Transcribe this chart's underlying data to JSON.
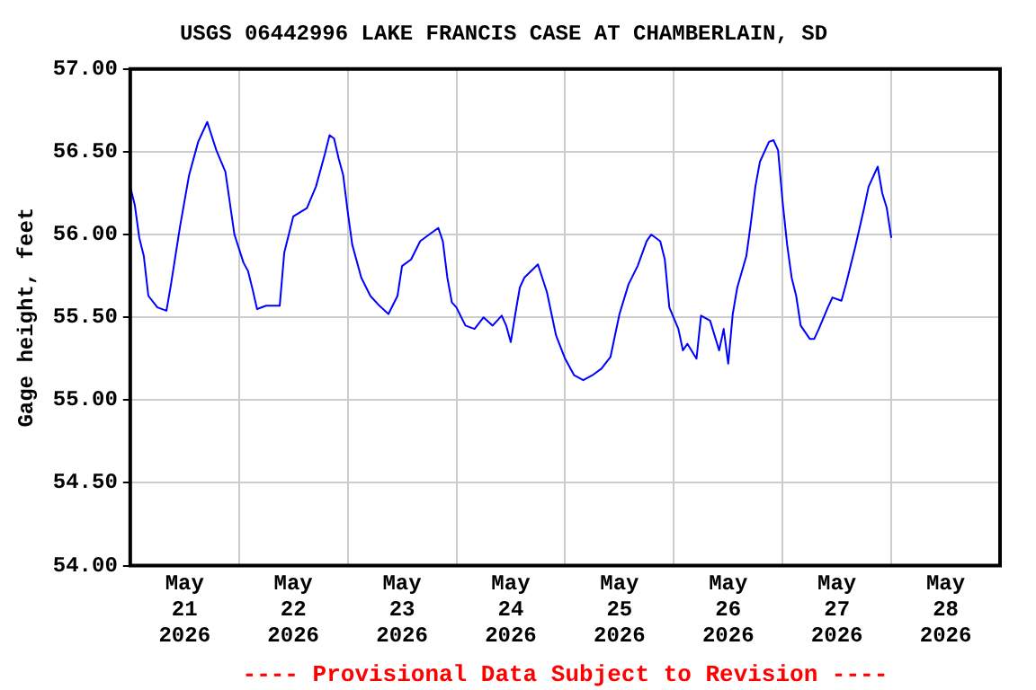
{
  "chart_data": {
    "type": "line",
    "title": "USGS 06442996 LAKE FRANCIS CASE AT CHAMBERLAIN, SD",
    "ylabel": "Gage height, feet",
    "annotations": [
      "---- Provisional Data Subject to Revision ----"
    ],
    "x": [
      "2026-05-21T00:00",
      "2026-05-21T01:00",
      "2026-05-21T02:00",
      "2026-05-21T03:00",
      "2026-05-21T04:00",
      "2026-05-21T06:00",
      "2026-05-21T08:00",
      "2026-05-21T09:00",
      "2026-05-21T11:00",
      "2026-05-21T13:00",
      "2026-05-21T15:00",
      "2026-05-21T17:00",
      "2026-05-21T19:00",
      "2026-05-21T21:00",
      "2026-05-21T23:00",
      "2026-05-22T01:00",
      "2026-05-22T02:00",
      "2026-05-22T03:00",
      "2026-05-22T04:00",
      "2026-05-22T06:00",
      "2026-05-22T09:00",
      "2026-05-22T10:00",
      "2026-05-22T12:00",
      "2026-05-22T15:00",
      "2026-05-22T17:00",
      "2026-05-22T19:00",
      "2026-05-22T20:00",
      "2026-05-22T21:00",
      "2026-05-22T22:00",
      "2026-05-22T23:00",
      "2026-05-23T00:00",
      "2026-05-23T01:00",
      "2026-05-23T03:00",
      "2026-05-23T05:00",
      "2026-05-23T07:00",
      "2026-05-23T09:00",
      "2026-05-23T11:00",
      "2026-05-23T12:00",
      "2026-05-23T14:00",
      "2026-05-23T16:00",
      "2026-05-23T18:00",
      "2026-05-23T20:00",
      "2026-05-23T21:00",
      "2026-05-23T22:00",
      "2026-05-23T23:00",
      "2026-05-24T00:00",
      "2026-05-24T02:00",
      "2026-05-24T04:00",
      "2026-05-24T06:00",
      "2026-05-24T08:00",
      "2026-05-24T10:00",
      "2026-05-24T11:00",
      "2026-05-24T12:00",
      "2026-05-24T13:00",
      "2026-05-24T14:00",
      "2026-05-24T15:00",
      "2026-05-24T18:00",
      "2026-05-24T20:00",
      "2026-05-24T22:00",
      "2026-05-25T00:00",
      "2026-05-25T02:00",
      "2026-05-25T04:00",
      "2026-05-25T06:00",
      "2026-05-25T08:00",
      "2026-05-25T10:00",
      "2026-05-25T12:00",
      "2026-05-25T14:00",
      "2026-05-25T16:00",
      "2026-05-25T18:00",
      "2026-05-25T19:00",
      "2026-05-25T21:00",
      "2026-05-25T22:00",
      "2026-05-25T23:00",
      "2026-05-26T01:00",
      "2026-05-26T02:00",
      "2026-05-26T03:00",
      "2026-05-26T05:00",
      "2026-05-26T06:00",
      "2026-05-26T08:00",
      "2026-05-26T10:00",
      "2026-05-26T11:00",
      "2026-05-26T12:00",
      "2026-05-26T13:00",
      "2026-05-26T14:00",
      "2026-05-26T16:00",
      "2026-05-26T17:00",
      "2026-05-26T18:00",
      "2026-05-26T19:00",
      "2026-05-26T21:00",
      "2026-05-26T22:00",
      "2026-05-26T23:00",
      "2026-05-27T00:00",
      "2026-05-27T01:00",
      "2026-05-27T02:00",
      "2026-05-27T03:00",
      "2026-05-27T04:00",
      "2026-05-27T06:00",
      "2026-05-27T07:00",
      "2026-05-27T08:00",
      "2026-05-27T10:00",
      "2026-05-27T11:00",
      "2026-05-27T13:00",
      "2026-05-27T14:00",
      "2026-05-27T16:00",
      "2026-05-27T18:00",
      "2026-05-27T19:00",
      "2026-05-27T21:00",
      "2026-05-27T22:00",
      "2026-05-27T23:00",
      "2026-05-28T00:00"
    ],
    "series": [
      {
        "color": "#0000ff",
        "values": [
          56.29,
          56.18,
          55.98,
          55.87,
          55.63,
          55.56,
          55.54,
          55.7,
          56.05,
          56.36,
          56.56,
          56.68,
          56.51,
          56.38,
          56.0,
          55.83,
          55.78,
          55.67,
          55.55,
          55.57,
          55.57,
          55.89,
          56.11,
          56.16,
          56.29,
          56.49,
          56.6,
          56.58,
          56.46,
          56.36,
          56.14,
          55.94,
          55.74,
          55.63,
          55.57,
          55.52,
          55.63,
          55.81,
          55.85,
          55.96,
          56.0,
          56.04,
          55.96,
          55.74,
          55.59,
          55.56,
          55.45,
          55.43,
          55.5,
          55.45,
          55.51,
          55.45,
          55.35,
          55.52,
          55.68,
          55.74,
          55.82,
          55.65,
          55.39,
          55.25,
          55.15,
          55.12,
          55.15,
          55.19,
          55.26,
          55.52,
          55.7,
          55.81,
          55.96,
          56.0,
          55.96,
          55.85,
          55.56,
          55.43,
          55.3,
          55.34,
          55.25,
          55.51,
          55.48,
          55.3,
          55.43,
          55.22,
          55.52,
          55.68,
          55.87,
          56.07,
          56.29,
          56.44,
          56.56,
          56.57,
          56.51,
          56.2,
          55.94,
          55.74,
          55.63,
          55.45,
          55.37,
          55.37,
          55.43,
          55.56,
          55.62,
          55.6,
          55.7,
          55.92,
          56.16,
          56.29,
          56.41,
          56.25,
          56.16,
          55.98
        ]
      }
    ],
    "xlim": [
      "2026-05-21T00:00",
      "2026-05-29T00:00"
    ],
    "xticks": [
      {
        "value": "2026-05-21T12:00",
        "label": "May\n21\n2026"
      },
      {
        "value": "2026-05-22T00:00",
        "label": null
      },
      {
        "value": "2026-05-22T12:00",
        "label": "May\n22\n2026"
      },
      {
        "value": "2026-05-23T00:00",
        "label": null
      },
      {
        "value": "2026-05-23T12:00",
        "label": "May\n23\n2026"
      },
      {
        "value": "2026-05-24T00:00",
        "label": null
      },
      {
        "value": "2026-05-24T12:00",
        "label": "May\n24\n2026"
      },
      {
        "value": "2026-05-25T00:00",
        "label": null
      },
      {
        "value": "2026-05-25T12:00",
        "label": "May\n25\n2026"
      },
      {
        "value": "2026-05-26T00:00",
        "label": null
      },
      {
        "value": "2026-05-26T12:00",
        "label": "May\n26\n2026"
      },
      {
        "value": "2026-05-27T00:00",
        "label": null
      },
      {
        "value": "2026-05-27T12:00",
        "label": "May\n27\n2026"
      },
      {
        "value": "2026-05-28T00:00",
        "label": null
      },
      {
        "value": "2026-05-28T12:00",
        "label": "May\n28\n2026"
      }
    ],
    "ylim": [
      54,
      57
    ],
    "yticks": [
      {
        "value": 54,
        "label": "54.00"
      },
      {
        "value": 54.5,
        "label": "54.50"
      },
      {
        "value": 55,
        "label": "55.00"
      },
      {
        "value": 55.5,
        "label": "55.50"
      },
      {
        "value": 56,
        "label": "56.00"
      },
      {
        "value": 56.5,
        "label": "56.50"
      },
      {
        "value": 57,
        "label": "57.00"
      }
    ],
    "grid": true,
    "legend": false,
    "marker": "none",
    "line_style": "solid"
  }
}
